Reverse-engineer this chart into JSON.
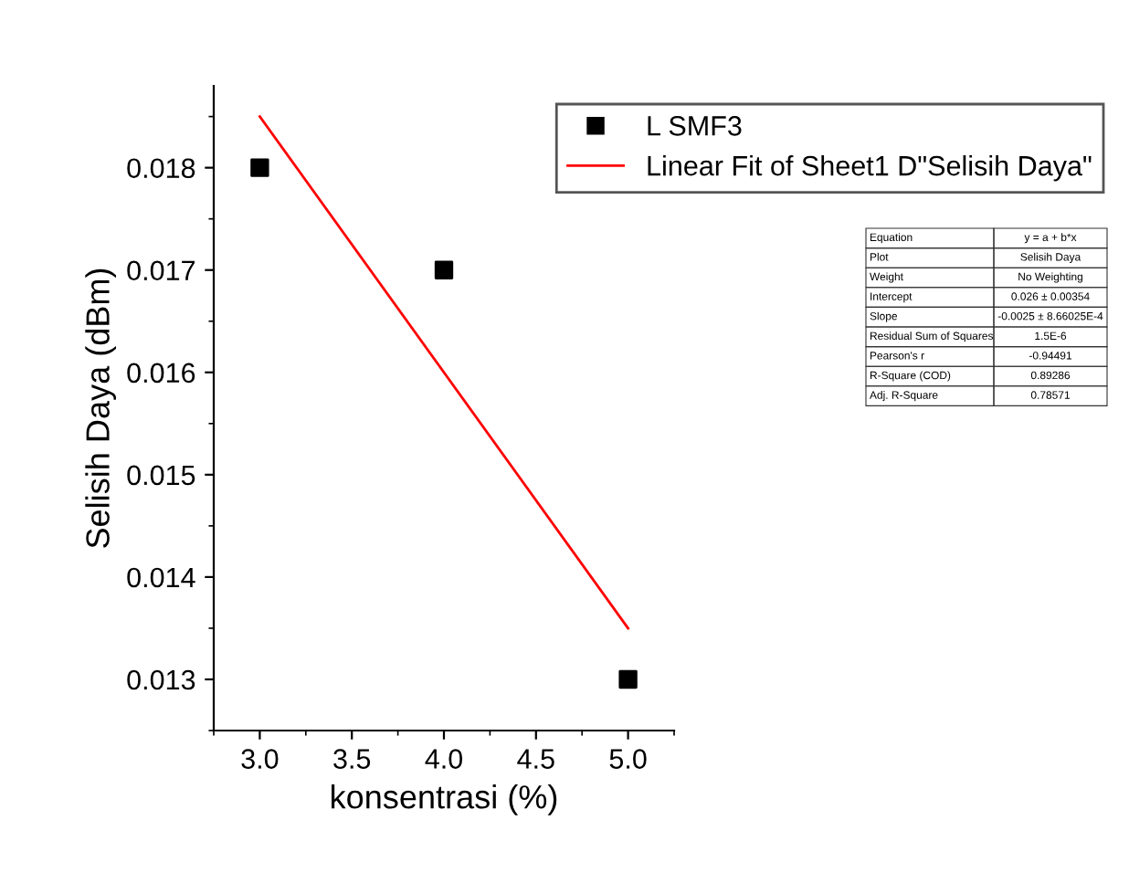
{
  "chart_data": {
    "type": "scatter",
    "xlabel": "konsentrasi (%)",
    "ylabel": "Selisih Daya (dBm)",
    "x": [
      3.0,
      4.0,
      5.0
    ],
    "series": [
      {
        "name": "L SMF3",
        "color": "#000000",
        "marker": "square",
        "values": [
          0.018,
          0.017,
          0.013
        ]
      },
      {
        "name": "Linear Fit of Sheet1 D\"Selisih Daya\"",
        "type": "line",
        "color": "#ff0000",
        "x": [
          3.0,
          5.0
        ],
        "values": [
          0.0185,
          0.0135
        ]
      }
    ],
    "xlim": [
      2.75,
      5.25
    ],
    "xticks": [
      {
        "value": 3.0,
        "label": "3.0"
      },
      {
        "value": 3.5,
        "label": "3.5"
      },
      {
        "value": 4.0,
        "label": "4.0"
      },
      {
        "value": 4.5,
        "label": "4.5"
      },
      {
        "value": 5.0,
        "label": "5.0"
      }
    ],
    "ylim": [
      0.0125,
      0.0188
    ],
    "yticks": [
      0.013,
      0.014,
      0.015,
      0.016,
      0.017,
      0.018
    ],
    "legend": "top right",
    "grid": false,
    "annotations": [
      "Equation",
      "y = a + b*x",
      "Plot",
      "Selisih Daya",
      "Weight",
      "No Weighting",
      "Intercept",
      "0.026 ± 0.00354",
      "Slope",
      "-0.0025 ± 8.66025E-4",
      "Residual Sum of Squares",
      "1.5E-6",
      "Pearson's r",
      "-0.94491",
      "R-Square (COD)",
      "0.89286",
      "Adj. R-Square",
      "0.78571"
    ]
  }
}
